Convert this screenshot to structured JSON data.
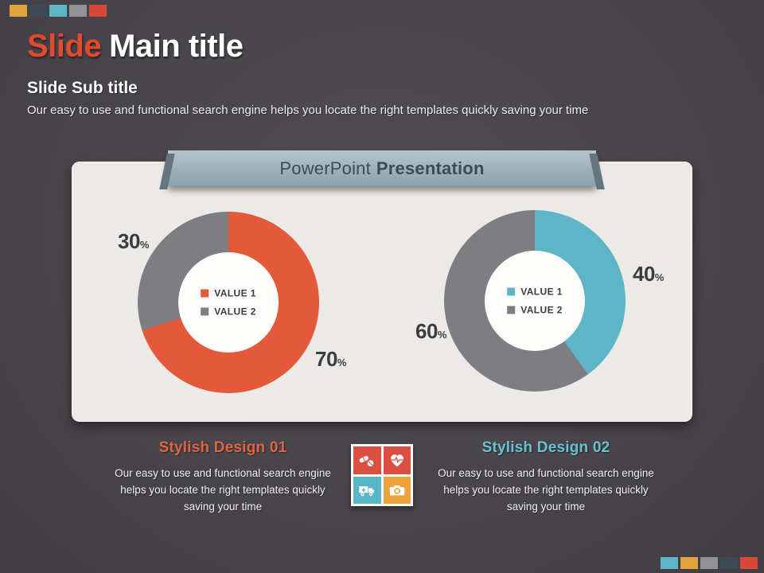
{
  "percent_symbol": "%",
  "header": {
    "title_accent": "Slide",
    "title_rest": "Main title",
    "subtitle": "Slide Sub title",
    "lead": "Our easy to use and functional search engine helps you locate the right templates quickly saving your time"
  },
  "banner": {
    "normal": "PowerPoint",
    "bold": "Presentation"
  },
  "decor": {
    "top_squares": [
      "#e1a33c",
      "#3c4a55",
      "#5db5c7",
      "#919196",
      "#d9473a"
    ],
    "bottom_squares": [
      "#5db5c7",
      "#e1a33c",
      "#919196",
      "#3c4a55",
      "#d9473a"
    ]
  },
  "chart_data": [
    {
      "type": "pie",
      "variant": "donut",
      "title": "Stylish Design 01",
      "legend_position": "center",
      "direction": "clockwise",
      "start_angle_deg": 0,
      "series": [
        {
          "name": "VALUE 1",
          "value": 70,
          "color": "#e4593a"
        },
        {
          "name": "VALUE 2",
          "value": 30,
          "color": "#7e7d82"
        }
      ],
      "labels": [
        {
          "text": "30",
          "position": "top-left"
        },
        {
          "text": "70",
          "position": "bottom-right"
        }
      ]
    },
    {
      "type": "pie",
      "variant": "donut",
      "title": "Stylish Design 02",
      "legend_position": "center",
      "direction": "clockwise",
      "start_angle_deg": 0,
      "series": [
        {
          "name": "VALUE 1",
          "value": 40,
          "color": "#5db5c7"
        },
        {
          "name": "VALUE 2",
          "value": 60,
          "color": "#7e7d82"
        }
      ],
      "labels": [
        {
          "text": "60",
          "position": "mid-left"
        },
        {
          "text": "40",
          "position": "mid-right"
        }
      ]
    }
  ],
  "cards": [
    {
      "title": "Stylish Design 01",
      "title_color": "#e0663f",
      "description": "Our easy to use and functional search engine helps you locate the right templates quickly saving your time"
    },
    {
      "title": "Stylish Design 02",
      "title_color": "#68c2d3",
      "description": "Our easy to use and functional search engine helps you locate the right templates quickly saving your time"
    }
  ],
  "icon_grid": {
    "tiles": [
      {
        "icon": "pills-icon",
        "color": "#db4f43"
      },
      {
        "icon": "heartbeat-icon",
        "color": "#db4f43"
      },
      {
        "icon": "ambulance-icon",
        "color": "#57b7c8"
      },
      {
        "icon": "camera-icon",
        "color": "#eda33b"
      }
    ]
  }
}
